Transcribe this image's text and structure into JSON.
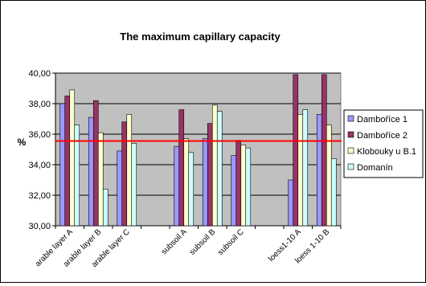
{
  "chart_data": {
    "type": "bar",
    "title": "The maximum capillary capacity",
    "ylabel": "%",
    "xlabel": "",
    "ylim": [
      30,
      40
    ],
    "yticks": [
      "30,00",
      "32,00",
      "34,00",
      "36,00",
      "38,00",
      "40,00"
    ],
    "ytick_values": [
      30,
      32,
      34,
      36,
      38,
      40
    ],
    "grid": "horizontal",
    "legend_position": "right",
    "plot_background": "#c0c0c0",
    "categories": [
      "arable layer A",
      "arable layer B",
      "arable layer C",
      "",
      "subsoil A",
      "subsoil B",
      "subsoil C",
      "",
      "loess1-10 A",
      "loess 1-10 B"
    ],
    "series": [
      {
        "name": "Damboříce 1",
        "color": "#9999ff",
        "values": [
          38.0,
          37.1,
          34.9,
          null,
          35.2,
          35.7,
          34.6,
          null,
          33.0,
          37.3
        ]
      },
      {
        "name": "Damboříce 2",
        "color": "#993366",
        "values": [
          38.5,
          38.2,
          36.8,
          null,
          37.6,
          36.7,
          35.6,
          null,
          39.9,
          39.9
        ]
      },
      {
        "name": "Klobouky u B.1",
        "color": "#ffffcc",
        "values": [
          38.9,
          36.1,
          37.3,
          null,
          35.7,
          37.9,
          35.3,
          null,
          37.3,
          36.6
        ]
      },
      {
        "name": "Domanín",
        "color": "#ccffff",
        "values": [
          36.6,
          32.4,
          35.4,
          null,
          34.8,
          37.5,
          35.1,
          null,
          37.6,
          34.4
        ]
      }
    ],
    "reference_line": {
      "value": 35.55,
      "color": "#ff0000"
    }
  }
}
